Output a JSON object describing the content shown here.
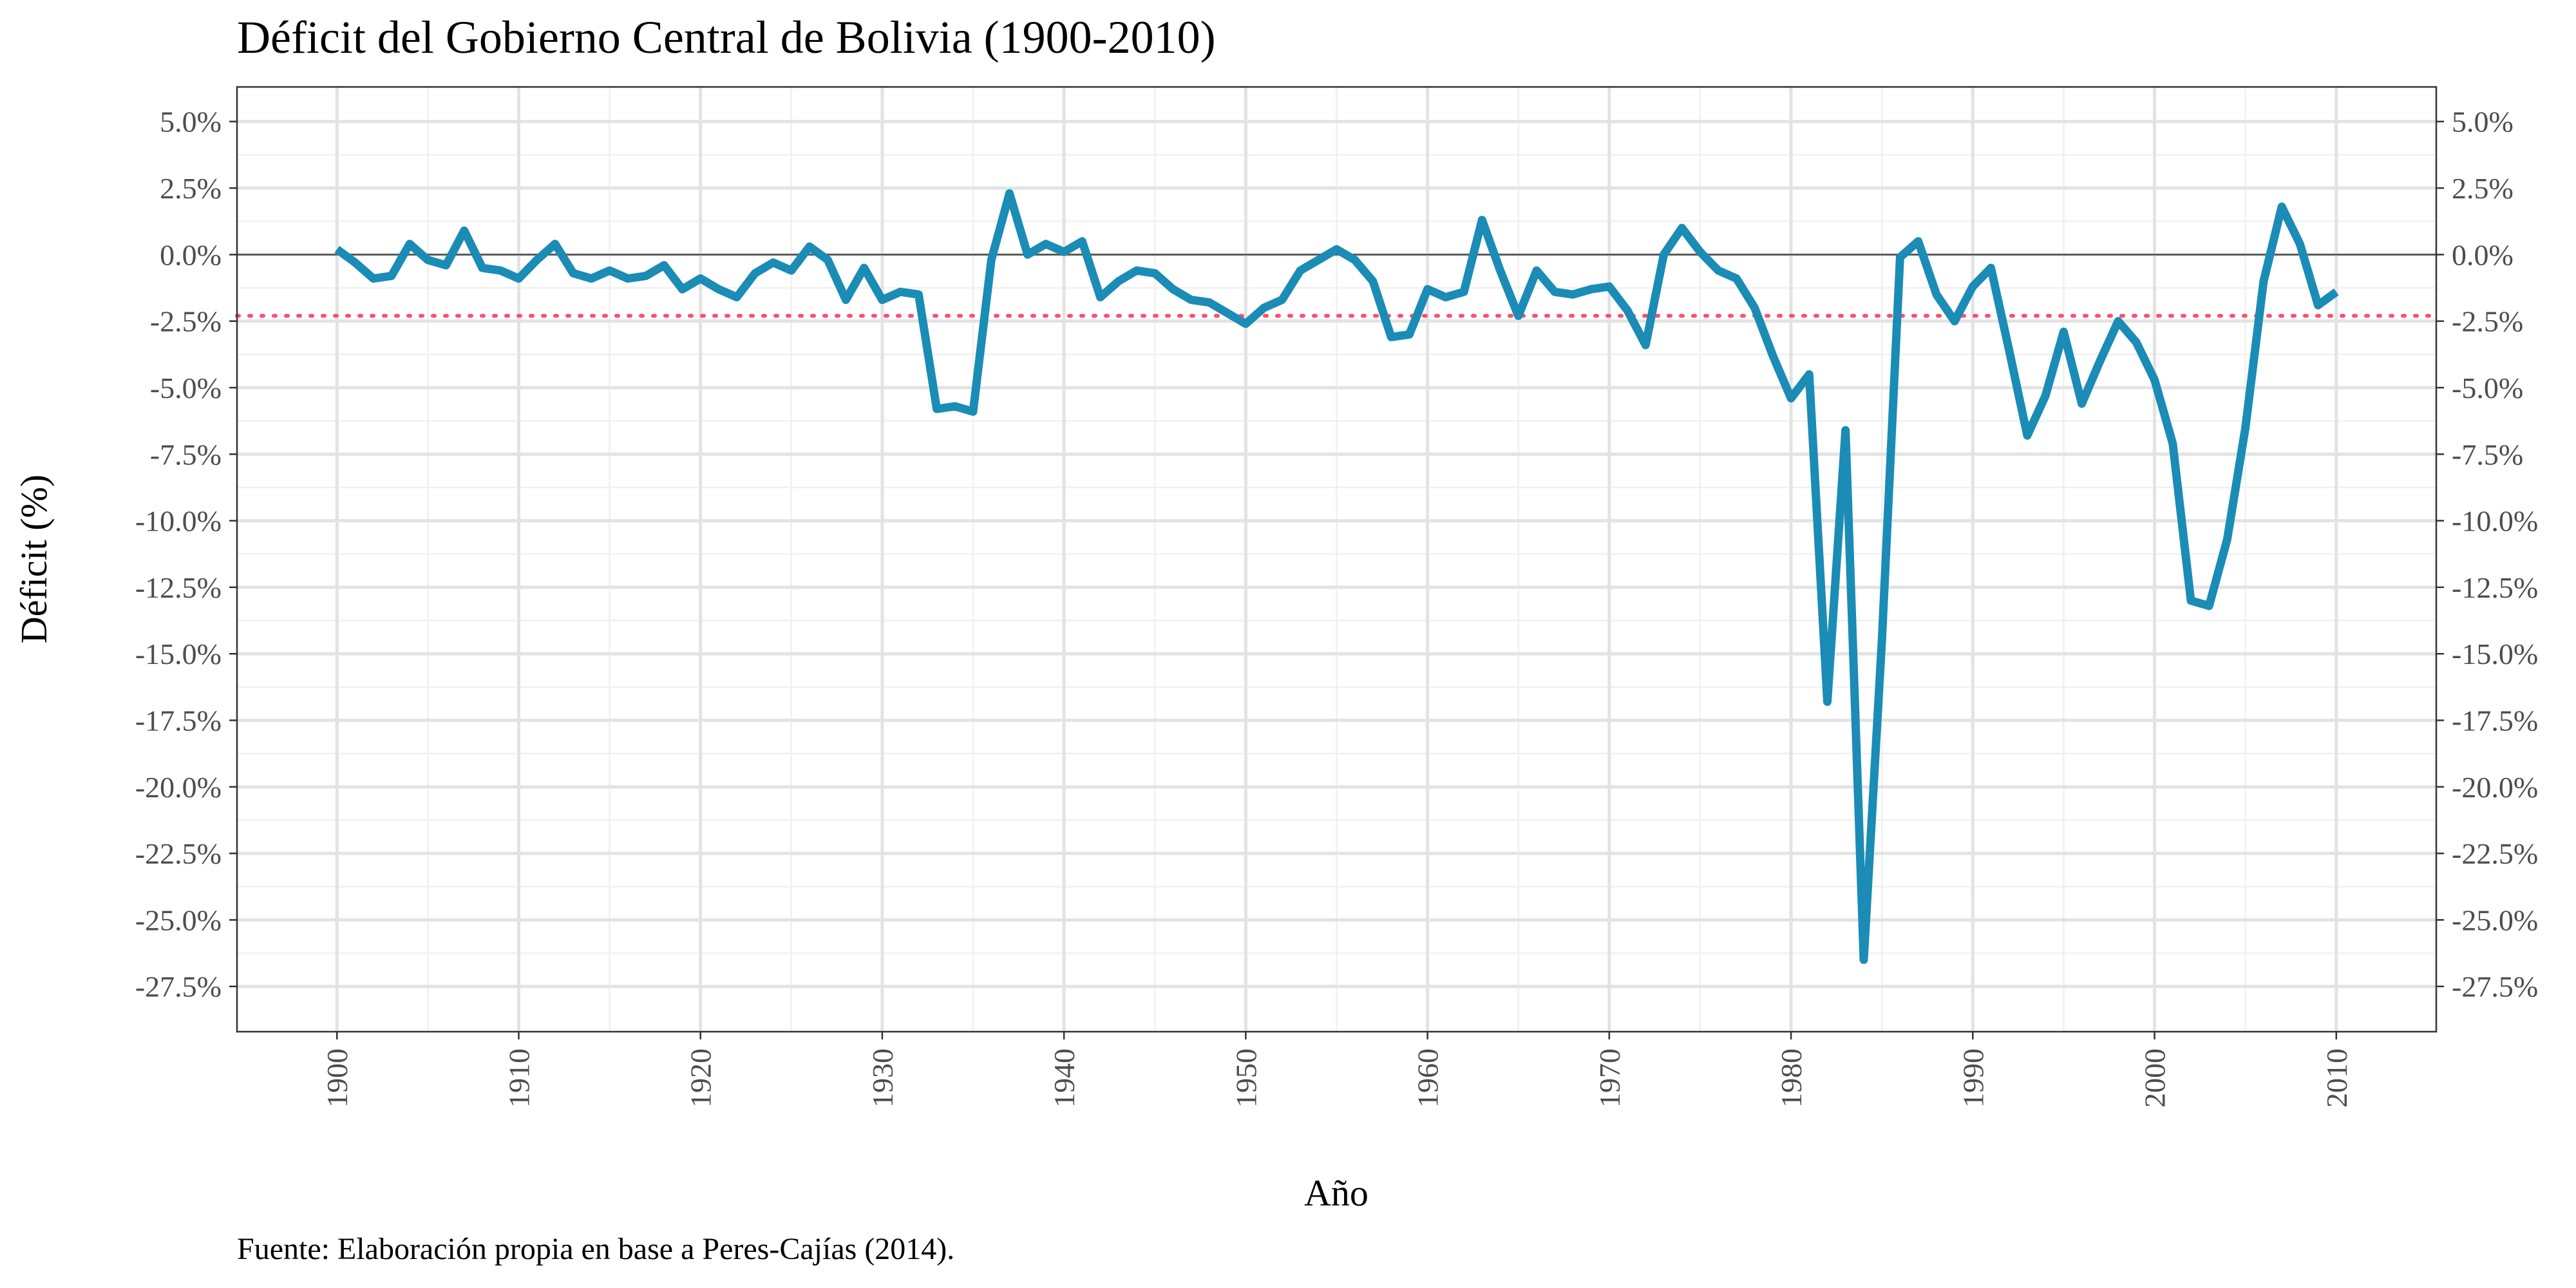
{
  "chart_data": {
    "type": "line",
    "title": "Déficit del Gobierno Central de Bolivia (1900-2010)",
    "xlabel": "Año",
    "ylabel": "Déficit (%)",
    "caption": "Fuente: Elaboración propia en base a Peres-Cajías (2014).",
    "xlim": [
      1894.5,
      2015.5
    ],
    "ylim": [
      -29.2,
      6.3
    ],
    "x_ticks": [
      1900,
      1910,
      1920,
      1930,
      1940,
      1950,
      1960,
      1970,
      1980,
      1990,
      2000,
      2010
    ],
    "x_tick_labels": [
      "1900",
      "1910",
      "1920",
      "1930",
      "1940",
      "1950",
      "1960",
      "1970",
      "1980",
      "1990",
      "2000",
      "2010"
    ],
    "y_ticks": [
      5,
      2.5,
      0,
      -2.5,
      -5,
      -7.5,
      -10,
      -12.5,
      -15,
      -17.5,
      -20,
      -22.5,
      -25,
      -27.5
    ],
    "y_tick_labels": [
      "5.0%",
      "2.5%",
      "0.0%",
      "-2.5%",
      "-5.0%",
      "-7.5%",
      "-10.0%",
      "-12.5%",
      "-15.0%",
      "-17.5%",
      "-20.0%",
      "-22.5%",
      "-25.0%",
      "-27.5%"
    ],
    "secondary_y_axis": true,
    "grid": true,
    "reference_lines": [
      {
        "y": 0,
        "style": "solid",
        "color": "#4d4d4d"
      },
      {
        "y": -2.3,
        "style": "dotted",
        "color": "#ff4d6d"
      }
    ],
    "series": [
      {
        "color": "#1a8cb5",
        "x": [
          1900,
          1901,
          1902,
          1903,
          1904,
          1905,
          1906,
          1907,
          1908,
          1909,
          1910,
          1911,
          1912,
          1913,
          1914,
          1915,
          1916,
          1917,
          1918,
          1919,
          1920,
          1921,
          1922,
          1923,
          1924,
          1925,
          1926,
          1927,
          1928,
          1929,
          1930,
          1931,
          1932,
          1933,
          1934,
          1935,
          1936,
          1937,
          1938,
          1939,
          1940,
          1941,
          1942,
          1943,
          1944,
          1945,
          1946,
          1947,
          1948,
          1949,
          1950,
          1951,
          1952,
          1953,
          1954,
          1955,
          1956,
          1957,
          1958,
          1959,
          1960,
          1961,
          1962,
          1963,
          1964,
          1965,
          1966,
          1967,
          1968,
          1969,
          1970,
          1971,
          1972,
          1973,
          1974,
          1975,
          1976,
          1977,
          1978,
          1979,
          1980,
          1981,
          1982,
          1983,
          1984,
          1985,
          1986,
          1987,
          1988,
          1989,
          1990,
          1991,
          1992,
          1993,
          1994,
          1995,
          1996,
          1997,
          1998,
          1999,
          2000,
          2001,
          2002,
          2003,
          2004,
          2005,
          2006,
          2007,
          2008,
          2009,
          2010
        ],
        "values": [
          0.2,
          -0.3,
          -0.9,
          -0.8,
          0.4,
          -0.2,
          -0.4,
          0.9,
          -0.5,
          -0.6,
          -0.9,
          -0.2,
          0.4,
          -0.7,
          -0.9,
          -0.6,
          -0.9,
          -0.8,
          -0.4,
          -1.3,
          -0.9,
          -1.3,
          -1.6,
          -0.7,
          -0.3,
          -0.6,
          0.3,
          -0.2,
          -1.7,
          -0.5,
          -1.7,
          -1.4,
          -1.5,
          -5.8,
          -5.7,
          -5.9,
          -0.2,
          2.3,
          0.0,
          0.4,
          0.1,
          0.5,
          -1.6,
          -1.0,
          -0.6,
          -0.7,
          -1.3,
          -1.7,
          -1.8,
          -2.2,
          -2.6,
          -2.0,
          -1.7,
          -0.6,
          -0.2,
          0.2,
          -0.2,
          -1.0,
          -3.1,
          -3.0,
          -1.3,
          -1.6,
          -1.4,
          1.3,
          -0.6,
          -2.3,
          -0.6,
          -1.4,
          -1.5,
          -1.3,
          -1.2,
          -2.1,
          -3.4,
          0.0,
          1.0,
          0.1,
          -0.6,
          -0.9,
          -2.0,
          -3.8,
          -5.4,
          -4.5,
          -16.8,
          -6.6,
          -26.5,
          -14.5,
          -0.1,
          0.5,
          -1.5,
          -2.5,
          -1.2,
          -0.5,
          -3.6,
          -6.8,
          -5.3,
          -2.9,
          -5.6,
          -4.0,
          -2.5,
          -3.3,
          -4.7,
          -7.1,
          -13.0,
          -13.2,
          -10.7,
          -6.5,
          -1.0,
          1.8,
          0.4,
          -1.9,
          -1.4
        ]
      }
    ]
  }
}
